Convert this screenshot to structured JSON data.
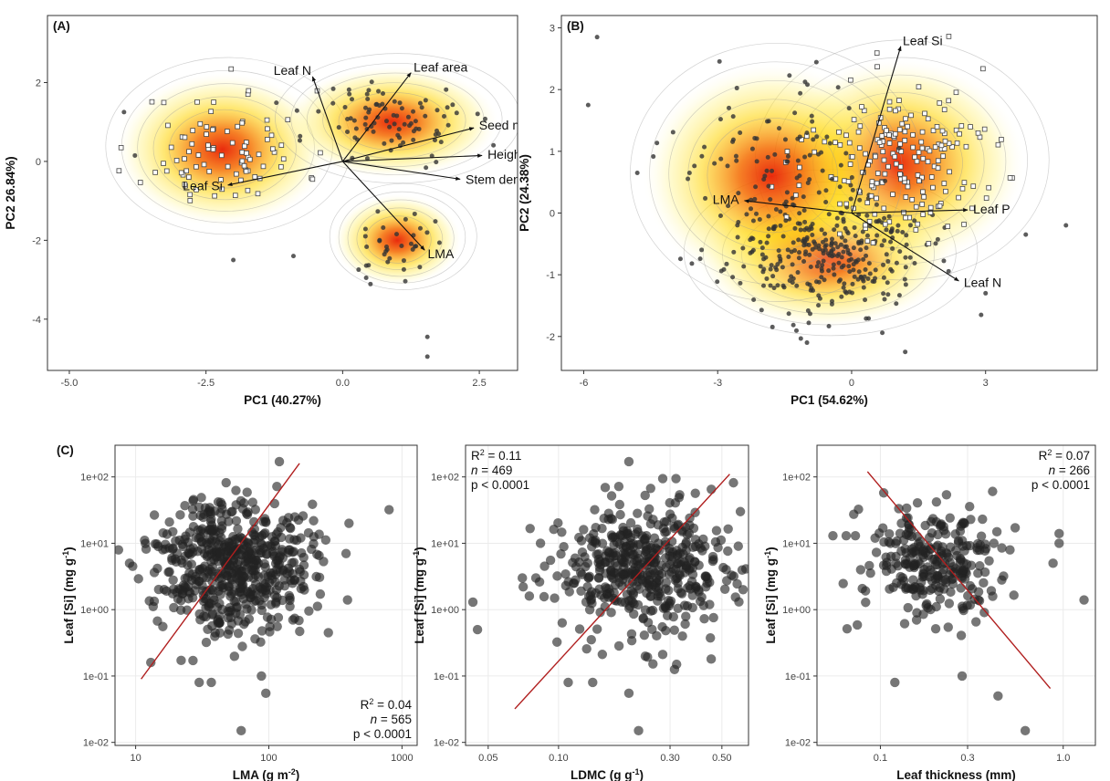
{
  "chart_data": [
    {
      "panel": "(A)",
      "type": "scatter",
      "xlabel": "PC1 (40.27%)",
      "ylabel": "PC2 26.84%)",
      "xlim": [
        -5.4,
        3.2
      ],
      "ylim": [
        -5.3,
        3.7
      ],
      "xticks": [
        "-5.0",
        "-2.5",
        "0.0",
        "2.5"
      ],
      "yticks": [
        "2",
        "0",
        "-2",
        "-4"
      ],
      "xtick_values": [
        -5,
        -2.5,
        0,
        2.5
      ],
      "ytick_values": [
        2,
        0,
        -2,
        -4
      ],
      "density_centers": [
        [
          -2.1,
          0.3,
          0.9
        ],
        [
          1.4,
          1.1,
          1.0
        ],
        [
          1.0,
          -2.0,
          0.8
        ]
      ],
      "clusters": [
        {
          "name": "",
          "marker": "square",
          "cx": -2.2,
          "cy": 0.3,
          "sx": 0.75,
          "sy": 0.75,
          "n": 90
        },
        {
          "name": "",
          "marker": "circle",
          "cx": 0.9,
          "cy": 1.0,
          "sx": 0.75,
          "sy": 0.55,
          "n": 90
        },
        {
          "name": "",
          "marker": "circle",
          "cx": 1.0,
          "cy": -2.0,
          "sx": 0.45,
          "sy": 0.45,
          "n": 35
        }
      ],
      "points": [
        [
          1.55,
          -4.45
        ],
        [
          1.55,
          -4.95
        ],
        [
          -4.0,
          1.25
        ],
        [
          -3.8,
          0.15
        ],
        [
          -2.0,
          -2.5
        ],
        [
          -0.9,
          -2.4
        ]
      ],
      "vectors": [
        {
          "label": "Leaf N",
          "x": -0.55,
          "y": 2.15
        },
        {
          "label": "Leaf area",
          "x": 1.25,
          "y": 2.25
        },
        {
          "label": "Seed mass",
          "x": 2.4,
          "y": 0.85
        },
        {
          "label": "Height",
          "x": 2.55,
          "y": 0.15
        },
        {
          "label": "Stem density",
          "x": 2.15,
          "y": -0.45
        },
        {
          "label": "Leaf Si",
          "x": -2.1,
          "y": -0.6
        },
        {
          "label": "LMA",
          "x": 1.5,
          "y": -2.25
        }
      ]
    },
    {
      "panel": "(B)",
      "type": "scatter",
      "xlabel": "PC1 (54.62%)",
      "ylabel": "PC2 (24.38%)",
      "xlim": [
        -6.5,
        5.5
      ],
      "ylim": [
        -2.55,
        3.2
      ],
      "xticks": [
        "-6",
        "-3",
        "0",
        "3"
      ],
      "yticks": [
        "3",
        "2",
        "1",
        "0",
        "-1",
        "-2"
      ],
      "xtick_values": [
        -6,
        -3,
        0,
        3
      ],
      "ytick_values": [
        3,
        2,
        1,
        0,
        -1,
        -2
      ],
      "density_centers": [
        [
          -0.6,
          -0.8,
          1.0
        ],
        [
          0.9,
          0.9,
          0.7
        ]
      ],
      "clusters": [
        {
          "name": "",
          "marker": "circle",
          "cx": -0.6,
          "cy": -0.7,
          "sx": 1.1,
          "sy": 0.45,
          "n": 300
        },
        {
          "name": "",
          "marker": "square",
          "cx": 1.0,
          "cy": 0.8,
          "sx": 1.1,
          "sy": 0.65,
          "n": 200
        },
        {
          "name": "",
          "marker": "circle",
          "cx": -1.8,
          "cy": 0.6,
          "sx": 1.1,
          "sy": 0.7,
          "n": 110
        }
      ],
      "points": [
        [
          -5.7,
          2.85
        ],
        [
          -5.9,
          1.75
        ],
        [
          -4.8,
          0.65
        ],
        [
          -2.5,
          1.3
        ],
        [
          4.8,
          -0.2
        ],
        [
          3.9,
          -0.35
        ],
        [
          3.0,
          -1.3
        ],
        [
          2.9,
          -1.65
        ],
        [
          -1.0,
          -2.1
        ],
        [
          1.2,
          -2.25
        ]
      ],
      "vectors": [
        {
          "label": "Leaf Si",
          "x": 1.1,
          "y": 2.7
        },
        {
          "label": "LMA",
          "x": -2.4,
          "y": 0.2
        },
        {
          "label": "Leaf P",
          "x": 2.6,
          "y": 0.05
        },
        {
          "label": "Leaf N",
          "x": 2.4,
          "y": -1.1
        }
      ]
    },
    {
      "panel": "(C)",
      "type": "scatter",
      "xlabel": "LMA (g m",
      "xlabel_sup": "-2",
      "xlabel_end": ")",
      "ylabel": "Leaf [Si] (mg g",
      "ylabel_sup": "-1",
      "ylabel_end": ")",
      "xscale": "log",
      "yscale": "log",
      "xlim": [
        7,
        1300
      ],
      "ylim": [
        0.009,
        300
      ],
      "xticks": [
        "10",
        "100",
        "1000"
      ],
      "xtick_values": [
        10,
        100,
        1000
      ],
      "yticks": [
        "1e+02",
        "1e+01",
        "1e+00",
        "1e-01",
        "1e-02"
      ],
      "ytick_values": [
        100,
        10,
        1,
        0.1,
        0.01
      ],
      "stats": {
        "r2_label": "R",
        "r2_sup": "2",
        "r2_value": " = 0.04",
        "n_label": "n",
        "n_value": " = 565",
        "p": "p < 0.0001",
        "position": "bottom-right"
      },
      "fit_line": [
        [
          11,
          0.09
        ],
        [
          170,
          160
        ]
      ],
      "cloud": {
        "cx": 55,
        "cy": 5,
        "sx": 0.28,
        "sy": 0.5,
        "n": 565
      },
      "points": [
        [
          9,
          5
        ],
        [
          9.5,
          4.5
        ],
        [
          13,
          0.16
        ],
        [
          30,
          0.08
        ],
        [
          37,
          0.08
        ],
        [
          62,
          0.015
        ],
        [
          88,
          0.1
        ],
        [
          95,
          0.055
        ],
        [
          120,
          170
        ],
        [
          280,
          0.45
        ],
        [
          390,
          1.4
        ],
        [
          380,
          7
        ],
        [
          800,
          32
        ],
        [
          400,
          20
        ]
      ]
    },
    {
      "panel": "",
      "type": "scatter",
      "xlabel": "LDMC (g g",
      "xlabel_sup": "-1",
      "xlabel_end": ")",
      "ylabel": "Leaf [Si] (mg g",
      "ylabel_sup": "-1",
      "ylabel_end": ")",
      "xscale": "log",
      "yscale": "log",
      "xlim": [
        0.04,
        0.65
      ],
      "ylim": [
        0.009,
        300
      ],
      "xticks": [
        "0.05",
        "0.10",
        "0.30",
        "0.50"
      ],
      "xtick_values": [
        0.05,
        0.1,
        0.3,
        0.5
      ],
      "yticks": [
        "1e+02",
        "1e+01",
        "1e+00",
        "1e-01",
        "1e-02"
      ],
      "ytick_values": [
        100,
        10,
        1,
        0.1,
        0.01
      ],
      "stats": {
        "r2_label": "R",
        "r2_sup": "2",
        "r2_value": " = 0.11",
        "n_label": "n",
        "n_value": " = 469",
        "p": "p < 0.0001",
        "position": "top-left"
      },
      "fit_line": [
        [
          0.065,
          0.032
        ],
        [
          0.54,
          110
        ]
      ],
      "cloud": {
        "cx": 0.24,
        "cy": 4,
        "sx": 0.2,
        "sy": 0.5,
        "n": 469
      },
      "points": [
        [
          0.043,
          1.3
        ],
        [
          0.045,
          0.5
        ],
        [
          0.07,
          3
        ],
        [
          0.075,
          1.6
        ],
        [
          0.08,
          3
        ],
        [
          0.11,
          0.08
        ],
        [
          0.14,
          0.08
        ],
        [
          0.2,
          170
        ],
        [
          0.2,
          0.055
        ],
        [
          0.22,
          0.015
        ],
        [
          0.32,
          0.15
        ],
        [
          0.45,
          0.18
        ],
        [
          0.55,
          3.3
        ],
        [
          0.6,
          30
        ]
      ]
    },
    {
      "panel": "",
      "type": "scatter",
      "xlabel": "Leaf thickness (mm)",
      "ylabel": "Leaf [Si] (mg g",
      "ylabel_sup": "-1",
      "ylabel_end": ")",
      "xscale": "log",
      "yscale": "log",
      "xlim": [
        0.045,
        1.5
      ],
      "ylim": [
        0.009,
        300
      ],
      "xticks": [
        "0.1",
        "0.3",
        "1.0"
      ],
      "xtick_values": [
        0.1,
        0.3,
        1.0
      ],
      "yticks": [
        "1e+02",
        "1e+01",
        "1e+00",
        "1e-01",
        "1e-02"
      ],
      "ytick_values": [
        100,
        10,
        1,
        0.1,
        0.01
      ],
      "stats": {
        "r2_label": "R",
        "r2_sup": "2",
        "r2_value": " = 0.07",
        "n_label": "n",
        "n_value": " = 266",
        "p": "p < 0.0001",
        "position": "top-right"
      },
      "fit_line": [
        [
          0.085,
          120
        ],
        [
          0.85,
          0.065
        ]
      ],
      "cloud": {
        "cx": 0.2,
        "cy": 5,
        "sx": 0.2,
        "sy": 0.45,
        "n": 266
      },
      "points": [
        [
          0.055,
          13
        ],
        [
          0.065,
          13
        ],
        [
          0.073,
          13
        ],
        [
          0.078,
          4
        ],
        [
          0.12,
          0.08
        ],
        [
          0.28,
          0.1
        ],
        [
          0.44,
          0.05
        ],
        [
          0.62,
          0.015
        ],
        [
          0.88,
          5
        ],
        [
          0.95,
          14
        ],
        [
          1.3,
          1.4
        ],
        [
          0.95,
          10
        ]
      ]
    }
  ]
}
